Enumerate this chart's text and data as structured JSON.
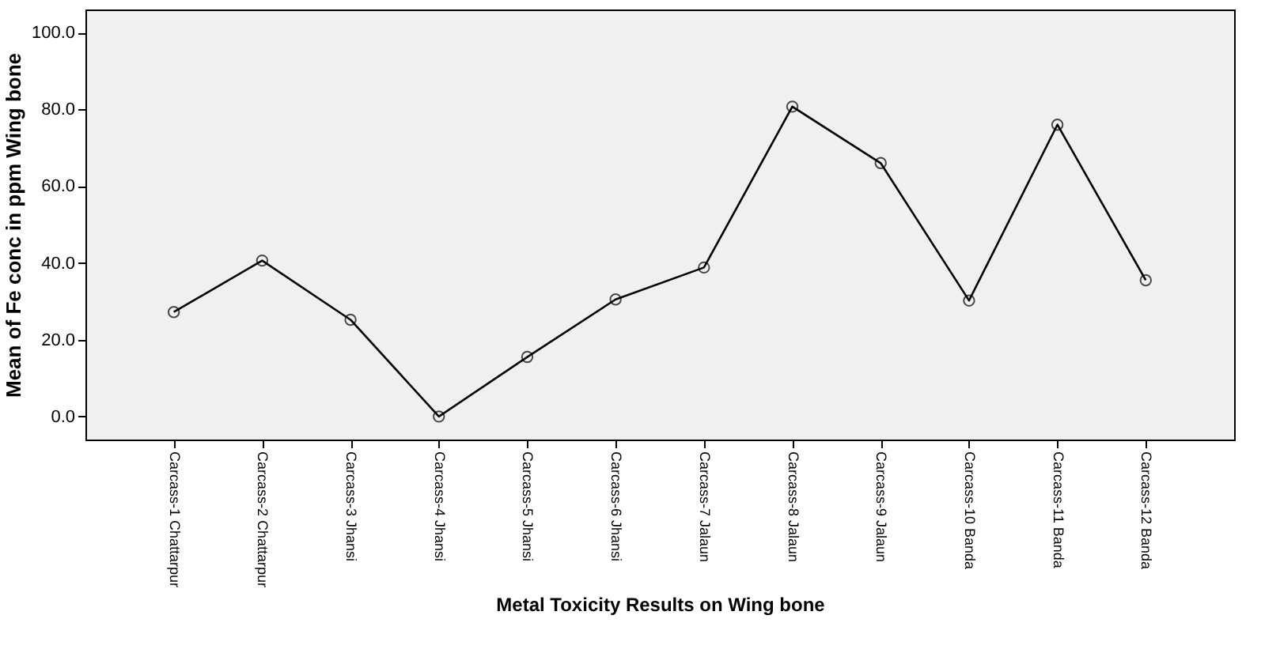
{
  "chart_data": {
    "type": "line",
    "xlabel": "Metal Toxicity Results on Wing bone",
    "ylabel": "Mean of Fe conc in ppm Wing bone",
    "categories": [
      "Carcass-1 Chattarpur",
      "Carcass-2 Chattarpur",
      "Carcass-3 Jhansi",
      "Carcass-4 Jhansi",
      "Carcass-5 Jhansi",
      "Carcass-6 Jhansi",
      "Carcass-7 Jalaun",
      "Carcass-8 Jalaun",
      "Carcass-9 Jalaun",
      "Carcass-10 Banda",
      "Carcass-11 Banda",
      "Carcass-12 Banda"
    ],
    "series": [
      {
        "color": "#000000",
        "values": [
          27.2,
          40.6,
          25.2,
          0,
          15.5,
          30.5,
          38.8,
          80.7,
          66.0,
          30.2,
          76.0,
          35.5
        ]
      }
    ],
    "ylim": [
      -6,
      106
    ],
    "yticks": [
      {
        "value": 0,
        "label": "0.0"
      },
      {
        "value": 20,
        "label": "20.0"
      },
      {
        "value": 40,
        "label": "40.0"
      },
      {
        "value": 60,
        "label": "60.0"
      },
      {
        "value": 80,
        "label": "80.0"
      },
      {
        "value": 100,
        "label": "100.0"
      }
    ],
    "grid": false,
    "marker": "circle",
    "line_style": "solid"
  }
}
